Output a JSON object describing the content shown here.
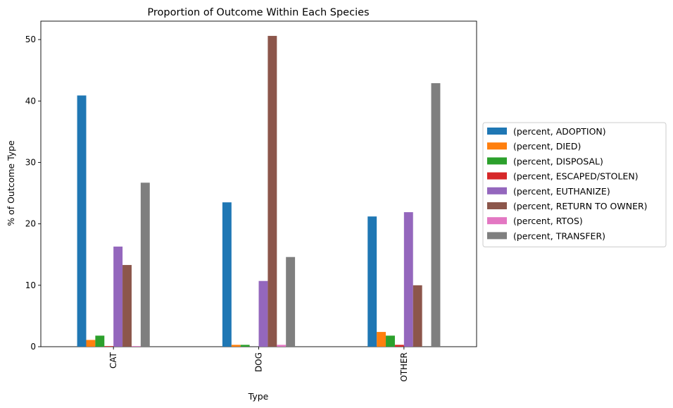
{
  "chart_data": {
    "type": "bar",
    "title": "Proportion of Outcome Within Each Species",
    "xlabel": "Type",
    "ylabel": "% of Outcome Type",
    "categories": [
      "CAT",
      "DOG",
      "OTHER"
    ],
    "ylim": [
      0,
      53
    ],
    "yticks": [
      0,
      10,
      20,
      30,
      40,
      50
    ],
    "grid": false,
    "legend_position": "right",
    "series": [
      {
        "name": "(percent, ADOPTION)",
        "color": "#1f77b4",
        "values": [
          40.9,
          23.5,
          21.2
        ]
      },
      {
        "name": "(percent, DIED)",
        "color": "#ff7f0e",
        "values": [
          1.1,
          0.3,
          2.4
        ]
      },
      {
        "name": "(percent, DISPOSAL)",
        "color": "#2ca02c",
        "values": [
          1.8,
          0.3,
          1.8
        ]
      },
      {
        "name": "(percent, ESCAPED/STOLEN)",
        "color": "#d62728",
        "values": [
          0.1,
          0.0,
          0.3
        ]
      },
      {
        "name": "(percent, EUTHANIZE)",
        "color": "#9467bd",
        "values": [
          16.3,
          10.7,
          21.9
        ]
      },
      {
        "name": "(percent, RETURN TO OWNER)",
        "color": "#8c564b",
        "values": [
          13.3,
          50.6,
          10.0
        ]
      },
      {
        "name": "(percent, RTOS)",
        "color": "#e377c2",
        "values": [
          0.1,
          0.3,
          0.0
        ]
      },
      {
        "name": "(percent, TRANSFER)",
        "color": "#7f7f7f",
        "values": [
          26.7,
          14.6,
          42.9
        ]
      }
    ]
  }
}
